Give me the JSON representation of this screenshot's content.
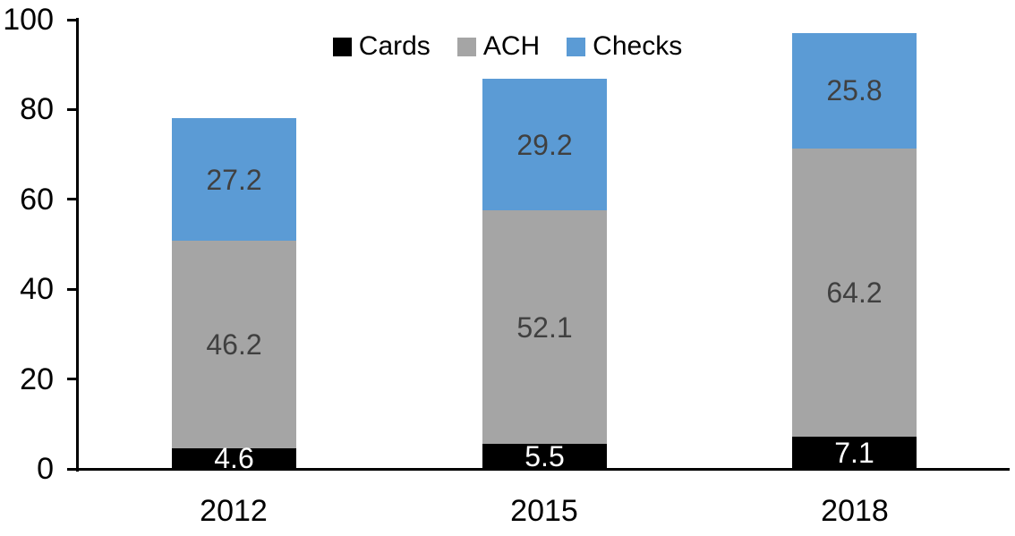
{
  "chart_data": {
    "type": "bar",
    "stacked": true,
    "title": "",
    "xlabel": "",
    "ylabel": "",
    "categories": [
      "2012",
      "2015",
      "2018"
    ],
    "series": [
      {
        "name": "Cards",
        "values": [
          4.6,
          5.5,
          7.1
        ],
        "color": "#000000",
        "label_color": "#FFFFFF"
      },
      {
        "name": "ACH",
        "values": [
          46.2,
          52.1,
          64.2
        ],
        "color": "#A5A5A5",
        "label_color": "#404040"
      },
      {
        "name": "Checks",
        "values": [
          27.2,
          29.2,
          25.8
        ],
        "color": "#5B9BD5",
        "label_color": "#404040"
      }
    ],
    "totals": [
      78.0,
      86.8,
      97.1
    ],
    "ylim": [
      0,
      100
    ],
    "yticks": [
      0,
      20,
      40,
      60,
      80,
      100
    ],
    "grid": false,
    "data_labels": true,
    "legend_position": "top-center",
    "axis_color": "#000000"
  }
}
